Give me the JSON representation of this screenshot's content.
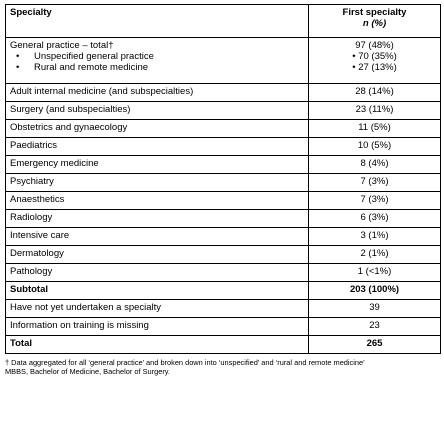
{
  "table": {
    "header": {
      "col1": "Specialty",
      "col2_line1": "First specialty",
      "col2_line2": "n (%)"
    },
    "general_practice": {
      "label": "General practice – total†",
      "value": "97 (48%)",
      "sub": [
        {
          "bullet": "•",
          "label": "Unspecified general practice",
          "value": "• 70 (35%)"
        },
        {
          "bullet": "•",
          "label": "Rural and remote medicine",
          "value": "• 27 (13%)"
        }
      ]
    },
    "rows": [
      {
        "label": "Adult internal medicine (and subspecialties)",
        "value": "28 (14%)"
      },
      {
        "label": "Surgery (and subspecialties)",
        "value": "23 (11%)"
      },
      {
        "label": "Obstetrics and gynaecology",
        "value": "11 (5%)"
      },
      {
        "label": "Paediatrics",
        "value": "10 (5%)"
      },
      {
        "label": "Emergency medicine",
        "value": "8 (4%)"
      },
      {
        "label": "Psychiatry",
        "value": "7 (3%)"
      },
      {
        "label": "Anaesthetics",
        "value": "7 (3%)"
      },
      {
        "label": "Radiology",
        "value": "6 (3%)"
      },
      {
        "label": "Intensive care",
        "value": "3 (1%)"
      },
      {
        "label": "Dermatology",
        "value": "2 (1%)"
      },
      {
        "label": "Pathology",
        "value": "1 (<1%)"
      }
    ],
    "subtotal": {
      "label": "Subtotal",
      "value": "203 (100%)"
    },
    "extra_rows": [
      {
        "label": "Have not yet undertaken a specialty",
        "value": "39"
      },
      {
        "label": "Information on training is missing",
        "value": "23"
      }
    ],
    "total": {
      "label": "Total",
      "value": "265"
    }
  },
  "notes": {
    "footnote": "† Data aggregated for all ‘general practice’ and broken down into ‘unspecified’ and ‘rural and remote medicine’",
    "abbreviation": "MBBS, Bachelor of Medicine, Bachelor of Surgery."
  }
}
